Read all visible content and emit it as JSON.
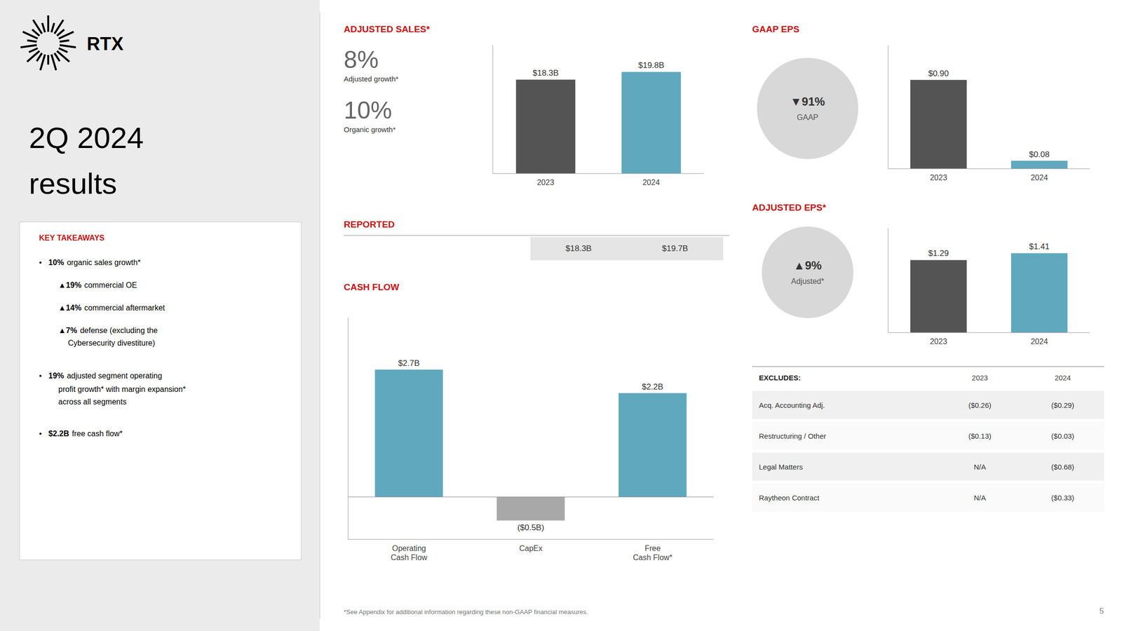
{
  "chart_data": [
    {
      "type": "bar",
      "title": "ADJUSTED SALES*",
      "categories": [
        "2023",
        "2024"
      ],
      "values": [
        18.3,
        19.8
      ],
      "value_labels": [
        "$18.3B",
        "$19.8B"
      ],
      "colors": [
        "#545454",
        "#5fa8be"
      ],
      "ylim": [
        0,
        25
      ],
      "tick_labels": "x",
      "data_labels": true,
      "annotations": [
        "8%",
        "Adjusted growth*",
        "10%",
        "Organic growth*",
        "REPORTED",
        "$18.3B",
        "$19.7B",
        "RTX",
        "2Q 2024",
        "results",
        "KEY TAKEAWAYS",
        "•",
        "10%",
        "organic sales growth*",
        "▲19%",
        "commercial OE",
        "▲14%",
        "commercial aftermarket",
        "▲7%",
        "defense (excluding the",
        "Cybersecurity divestiture)",
        "19%",
        "adjusted segment operating",
        "profit growth* with margin expansion*",
        "across all segments",
        "$2.2B",
        "free cash flow*",
        "*See Appendix for additional information regarding these non-GAAP financial measures.",
        "5"
      ]
    },
    {
      "type": "bar",
      "title": "CASH FLOW",
      "categories": [
        "Operating\nCash Flow",
        "CapEx",
        "Free\nCash Flow*"
      ],
      "values": [
        2.7,
        -0.5,
        2.2
      ],
      "value_labels": [
        "$2.7B",
        "($0.5B)",
        "$2.2B"
      ],
      "colors": [
        "#5fa8be",
        "#a8a8a8",
        "#5fa8be"
      ],
      "ylim": [
        -0.9,
        3.8
      ],
      "tick_labels": "x",
      "data_labels": true
    },
    {
      "type": "bar",
      "title": "GAAP EPS",
      "categories": [
        "2023",
        "2024"
      ],
      "values": [
        0.9,
        0.08
      ],
      "value_labels": [
        "$0.90",
        "$0.08"
      ],
      "colors": [
        "#545454",
        "#5fa8be"
      ],
      "ylim": [
        0,
        1.25
      ],
      "tick_labels": "x",
      "data_labels": true,
      "annotations": [
        "▼91%",
        "GAAP"
      ]
    },
    {
      "type": "bar",
      "title": "ADJUSTED EPS*",
      "categories": [
        "2023",
        "2024"
      ],
      "values": [
        1.29,
        1.41
      ],
      "value_labels": [
        "$1.29",
        "$1.41"
      ],
      "colors": [
        "#545454",
        "#5fa8be"
      ],
      "ylim": [
        0,
        1.85
      ],
      "tick_labels": "x",
      "data_labels": true,
      "annotations": [
        "▲9%",
        "Adjusted*",
        "EXCLUDES:",
        "2023",
        "2024",
        "Acq. Accounting Adj.",
        "($0.26)",
        "($0.29)",
        "Restructuring / Other",
        "($0.13)",
        "($0.03)",
        "Legal Matters",
        "N/A",
        "($0.68)",
        "Raytheon Contract",
        "N/A",
        "($0.33)"
      ]
    }
  ]
}
